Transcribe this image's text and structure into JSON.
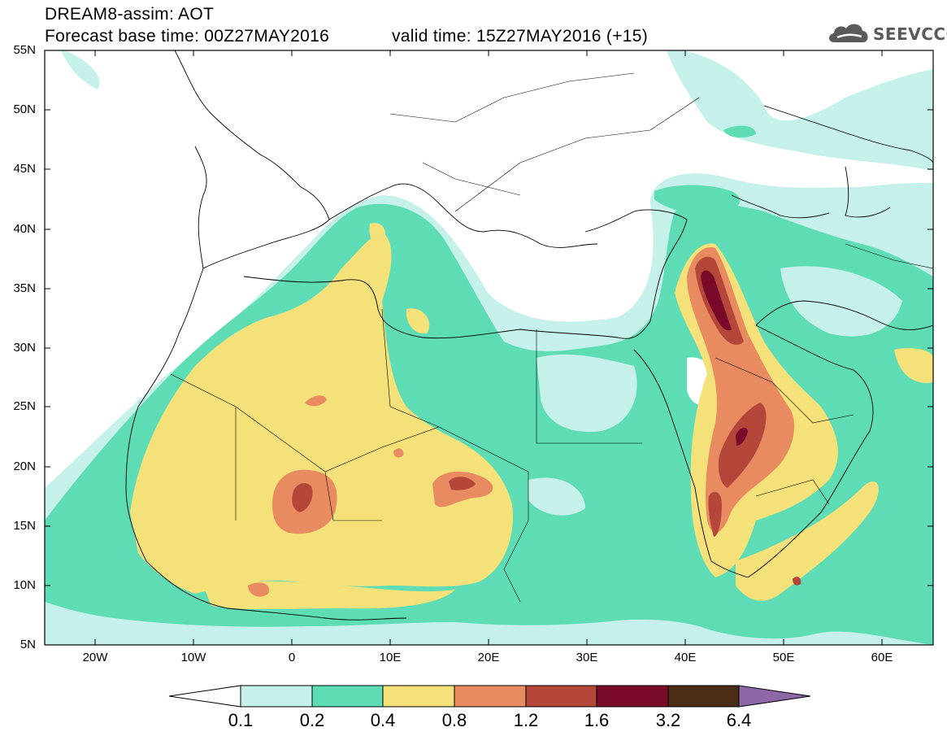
{
  "header": {
    "line1": "DREAM8-assim: AOT",
    "base": "Forecast base time: 00Z27MAY2016",
    "valid": "valid time: 15Z27MAY2016 (+15)"
  },
  "logo": {
    "text": "SEEVCCC",
    "icon": "cloud-icon"
  },
  "axes": {
    "lat_labels": [
      "55N",
      "50N",
      "45N",
      "40N",
      "35N",
      "30N",
      "25N",
      "20N",
      "15N",
      "10N",
      "5N"
    ],
    "lon_labels": [
      "20W",
      "10W",
      "0",
      "10E",
      "20E",
      "30E",
      "40E",
      "50E",
      "60E"
    ],
    "lat_range": [
      5,
      55
    ],
    "lon_range": [
      -25,
      65
    ]
  },
  "colorbar": {
    "levels": [
      "0.1",
      "0.2",
      "0.4",
      "0.8",
      "1.2",
      "1.6",
      "3.2",
      "6.4"
    ],
    "colors": [
      "#ffffff",
      "#c5f1ea",
      "#5ddcb6",
      "#f4e17a",
      "#e98b60",
      "#b4463a",
      "#7a0a2a",
      "#4a2b14",
      "#8e67a8"
    ]
  }
}
